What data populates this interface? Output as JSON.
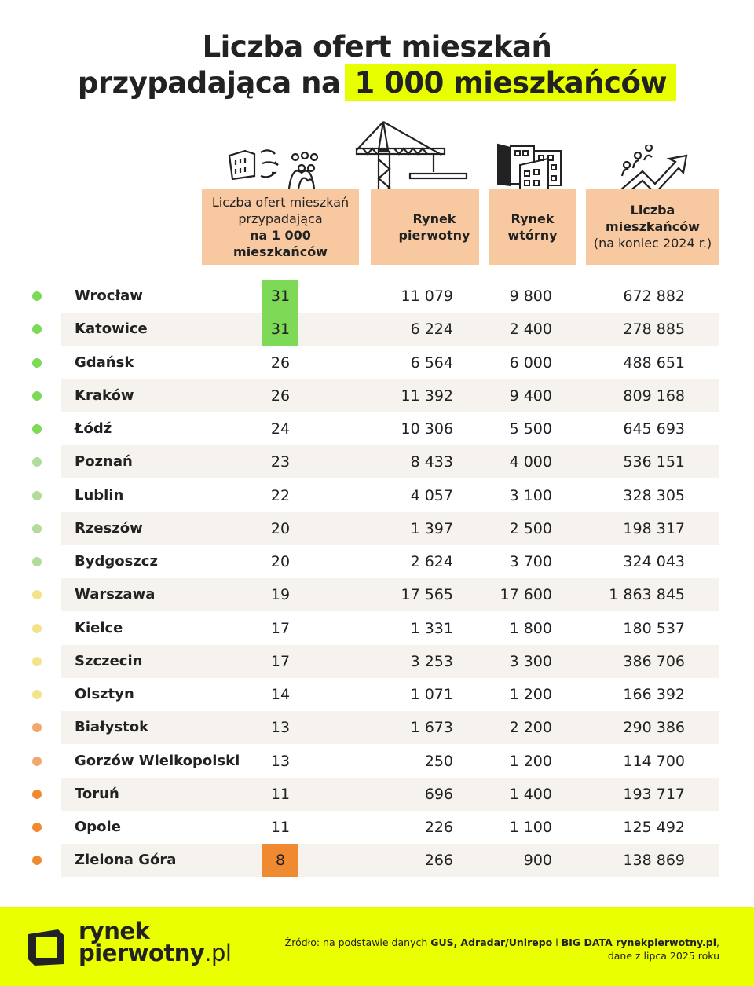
{
  "title": {
    "line1": "Liczba ofert mieszkań",
    "line2_prefix": "przypadająca na",
    "line2_highlight": "1 000 mieszkańców"
  },
  "headers": [
    {
      "line1": "Liczba ofert mieszkań",
      "line2": "przypadająca",
      "line3": "na 1 000",
      "line4": "mieszkańców"
    },
    {
      "line1": "Rynek",
      "line2": "pierwotny"
    },
    {
      "line1": "Rynek",
      "line2": "wtórny"
    },
    {
      "line1": "Liczba",
      "line2": "mieszkańców",
      "line3": "(na koniec 2024 r.)"
    }
  ],
  "colors": {
    "highlight": "#e8ff00",
    "header_bg": "#f8c8a0",
    "top_green": "#7ed957",
    "bottom_orange": "#f08a30",
    "green": "#7ed957",
    "light_green": "#b3dc9c",
    "yellow": "#f3e48a",
    "light_orange": "#f0a86c",
    "orange": "#f08a30"
  },
  "rows": [
    {
      "city": "Wrocław",
      "per1000": "31",
      "primary": "11 079",
      "secondary": "9 800",
      "population": "672 882",
      "tier": "green",
      "badge": "top_green"
    },
    {
      "city": "Katowice",
      "per1000": "31",
      "primary": "6 224",
      "secondary": "2 400",
      "population": "278 885",
      "tier": "green",
      "badge": "top_green"
    },
    {
      "city": "Gdańsk",
      "per1000": "26",
      "primary": "6 564",
      "secondary": "6 000",
      "population": "488 651",
      "tier": "green"
    },
    {
      "city": "Kraków",
      "per1000": "26",
      "primary": "11 392",
      "secondary": "9 400",
      "population": "809 168",
      "tier": "green"
    },
    {
      "city": "Łódź",
      "per1000": "24",
      "primary": "10 306",
      "secondary": "5 500",
      "population": "645 693",
      "tier": "green"
    },
    {
      "city": "Poznań",
      "per1000": "23",
      "primary": "8 433",
      "secondary": "4 000",
      "population": "536 151",
      "tier": "light_green"
    },
    {
      "city": "Lublin",
      "per1000": "22",
      "primary": "4 057",
      "secondary": "3 100",
      "population": "328 305",
      "tier": "light_green"
    },
    {
      "city": "Rzeszów",
      "per1000": "20",
      "primary": "1 397",
      "secondary": "2 500",
      "population": "198 317",
      "tier": "light_green"
    },
    {
      "city": "Bydgoszcz",
      "per1000": "20",
      "primary": "2 624",
      "secondary": "3 700",
      "population": "324 043",
      "tier": "light_green"
    },
    {
      "city": "Warszawa",
      "per1000": "19",
      "primary": "17 565",
      "secondary": "17 600",
      "population": "1 863 845",
      "tier": "yellow"
    },
    {
      "city": "Kielce",
      "per1000": "17",
      "primary": "1 331",
      "secondary": "1 800",
      "population": "180 537",
      "tier": "yellow"
    },
    {
      "city": "Szczecin",
      "per1000": "17",
      "primary": "3 253",
      "secondary": "3 300",
      "population": "386 706",
      "tier": "yellow"
    },
    {
      "city": "Olsztyn",
      "per1000": "14",
      "primary": "1 071",
      "secondary": "1 200",
      "population": "166 392",
      "tier": "yellow"
    },
    {
      "city": "Białystok",
      "per1000": "13",
      "primary": "1 673",
      "secondary": "2 200",
      "population": "290 386",
      "tier": "light_orange"
    },
    {
      "city": "Gorzów Wielkopolski",
      "per1000": "13",
      "primary": "250",
      "secondary": "1 200",
      "population": "114 700",
      "tier": "light_orange"
    },
    {
      "city": "Toruń",
      "per1000": "11",
      "primary": "696",
      "secondary": "1 400",
      "population": "193 717",
      "tier": "orange"
    },
    {
      "city": "Opole",
      "per1000": "11",
      "primary": "226",
      "secondary": "1 100",
      "population": "125 492",
      "tier": "orange"
    },
    {
      "city": "Zielona Góra",
      "per1000": "8",
      "primary": "266",
      "secondary": "900",
      "population": "138 869",
      "tier": "orange",
      "badge": "bottom_orange"
    }
  ],
  "footer": {
    "logo_line1": "rynek",
    "logo_line2": "pierwotny",
    "logo_suffix": ".pl",
    "source_prefix": "Źródło: na podstawie danych ",
    "source_gus": "GUS,",
    "source_adradar": "Adradar/Unirepo",
    "source_and": " i ",
    "source_bigdata": "BIG DATA rynekpierwotny.pl",
    ",": ",",
    "source_line2": "dane z lipca 2025 roku"
  },
  "icons": [
    "buildings-to-people-icon",
    "crane-icon",
    "apartment-blocks-icon",
    "population-growth-icon"
  ]
}
